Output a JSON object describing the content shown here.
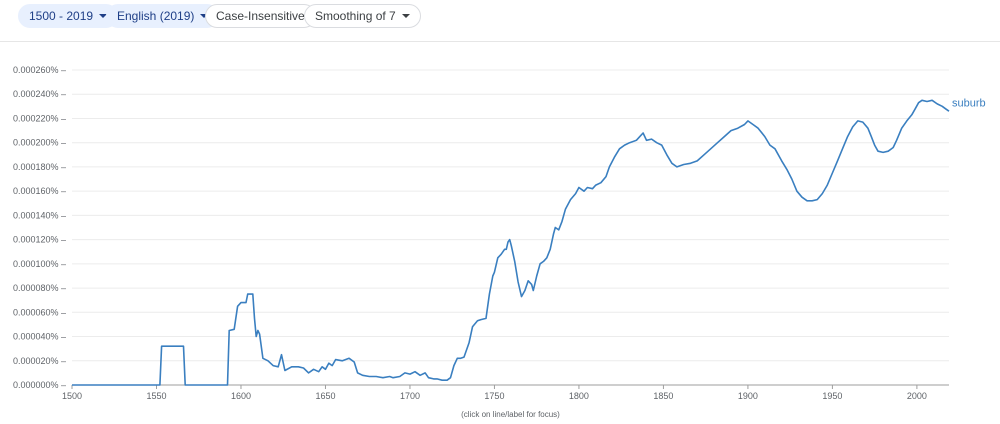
{
  "toolbar": {
    "year_range": "1500 - 2019",
    "corpus": "English (2019)",
    "case": "Case-Insensitive",
    "smoothing": "Smoothing of 7"
  },
  "colors": {
    "series": "#3a7fc0",
    "chip_bg": "#e8f0fe",
    "grid": "#ececec"
  },
  "chart_data": {
    "type": "line",
    "title": "",
    "xlabel": "",
    "ylabel": "",
    "hint": "(click on line/label for focus)",
    "xlim": [
      1500,
      2019
    ],
    "ylim": [
      0,
      0.00026
    ],
    "x_ticks": [
      "1500",
      "1550",
      "1600",
      "1650",
      "1700",
      "1750",
      "1800",
      "1850",
      "1900",
      "1950",
      "2000"
    ],
    "y_ticks": [
      "0.000000%",
      "0.000020%",
      "0.000040%",
      "0.000060%",
      "0.000080%",
      "0.000100%",
      "0.000120%",
      "0.000140%",
      "0.000160%",
      "0.000180%",
      "0.000200%",
      "0.000220%",
      "0.000240%",
      "0.000260%"
    ],
    "series": [
      {
        "name": "suburb",
        "unit": "percent",
        "points": [
          [
            1500,
            0
          ],
          [
            1552,
            0
          ],
          [
            1553,
            3.2e-05
          ],
          [
            1566,
            3.2e-05
          ],
          [
            1567,
            0
          ],
          [
            1592,
            0
          ],
          [
            1593,
            4.5e-05
          ],
          [
            1596,
            4.6e-05
          ],
          [
            1598,
            6.5e-05
          ],
          [
            1600,
            6.8e-05
          ],
          [
            1603,
            6.8e-05
          ],
          [
            1604,
            7.5e-05
          ],
          [
            1607,
            7.5e-05
          ],
          [
            1608,
            5.5e-05
          ],
          [
            1609,
            4e-05
          ],
          [
            1610,
            4.5e-05
          ],
          [
            1611,
            4.2e-05
          ],
          [
            1613,
            2.2e-05
          ],
          [
            1616,
            2e-05
          ],
          [
            1619,
            1.6e-05
          ],
          [
            1622,
            1.5e-05
          ],
          [
            1624,
            2.5e-05
          ],
          [
            1626,
            1.2e-05
          ],
          [
            1630,
            1.5e-05
          ],
          [
            1634,
            1.5e-05
          ],
          [
            1637,
            1.4e-05
          ],
          [
            1640,
            1e-05
          ],
          [
            1643,
            1.3e-05
          ],
          [
            1646,
            1.1e-05
          ],
          [
            1648,
            1.5e-05
          ],
          [
            1650,
            1.3e-05
          ],
          [
            1652,
            1.8e-05
          ],
          [
            1654,
            1.6e-05
          ],
          [
            1656,
            2.1e-05
          ],
          [
            1660,
            2e-05
          ],
          [
            1664,
            2.2e-05
          ],
          [
            1667,
            1.9e-05
          ],
          [
            1669,
            1e-05
          ],
          [
            1672,
            8e-06
          ],
          [
            1676,
            7e-06
          ],
          [
            1680,
            7e-06
          ],
          [
            1684,
            6e-06
          ],
          [
            1688,
            7e-06
          ],
          [
            1690,
            6e-06
          ],
          [
            1694,
            7e-06
          ],
          [
            1697,
            1e-05
          ],
          [
            1700,
            9e-06
          ],
          [
            1703,
            1.1e-05
          ],
          [
            1706,
            8e-06
          ],
          [
            1709,
            1e-05
          ],
          [
            1711,
            6e-06
          ],
          [
            1714,
            5e-06
          ],
          [
            1716,
            5e-06
          ],
          [
            1719,
            4e-06
          ],
          [
            1722,
            4e-06
          ],
          [
            1724,
            6e-06
          ],
          [
            1726,
            1.6e-05
          ],
          [
            1728,
            2.2e-05
          ],
          [
            1730,
            2.2e-05
          ],
          [
            1732,
            2.3e-05
          ],
          [
            1735,
            3.5e-05
          ],
          [
            1737,
            4.8e-05
          ],
          [
            1740,
            5.3e-05
          ],
          [
            1742,
            5.4e-05
          ],
          [
            1745,
            5.5e-05
          ],
          [
            1747,
            7.5e-05
          ],
          [
            1749,
            9e-05
          ],
          [
            1750,
            9.3e-05
          ],
          [
            1752,
            0.000105
          ],
          [
            1754,
            0.000108
          ],
          [
            1756,
            0.000112
          ],
          [
            1757,
            0.000112
          ],
          [
            1758,
            0.000118
          ],
          [
            1759,
            0.00012
          ],
          [
            1760,
            0.000115
          ],
          [
            1762,
            0.000102
          ],
          [
            1764,
            8.5e-05
          ],
          [
            1766,
            7.3e-05
          ],
          [
            1768,
            7.8e-05
          ],
          [
            1770,
            8.6e-05
          ],
          [
            1772,
            8.3e-05
          ],
          [
            1773,
            7.8e-05
          ],
          [
            1775,
            9e-05
          ],
          [
            1777,
            0.0001
          ],
          [
            1779,
            0.000102
          ],
          [
            1781,
            0.000105
          ],
          [
            1783,
            0.000112
          ],
          [
            1785,
            0.000125
          ],
          [
            1786,
            0.00013
          ],
          [
            1788,
            0.000128
          ],
          [
            1790,
            0.000135
          ],
          [
            1792,
            0.000145
          ],
          [
            1795,
            0.000153
          ],
          [
            1798,
            0.000158
          ],
          [
            1800,
            0.000163
          ],
          [
            1803,
            0.00016
          ],
          [
            1805,
            0.000163
          ],
          [
            1808,
            0.000162
          ],
          [
            1810,
            0.000165
          ],
          [
            1813,
            0.000167
          ],
          [
            1816,
            0.000172
          ],
          [
            1818,
            0.00018
          ],
          [
            1821,
            0.000188
          ],
          [
            1824,
            0.000195
          ],
          [
            1827,
            0.000198
          ],
          [
            1830,
            0.0002
          ],
          [
            1834,
            0.000202
          ],
          [
            1836,
            0.000205
          ],
          [
            1838,
            0.000208
          ],
          [
            1840,
            0.000202
          ],
          [
            1843,
            0.000203
          ],
          [
            1846,
            0.0002
          ],
          [
            1849,
            0.000198
          ],
          [
            1852,
            0.00019
          ],
          [
            1855,
            0.000183
          ],
          [
            1858,
            0.00018
          ],
          [
            1862,
            0.000182
          ],
          [
            1866,
            0.000183
          ],
          [
            1870,
            0.000185
          ],
          [
            1874,
            0.00019
          ],
          [
            1878,
            0.000195
          ],
          [
            1882,
            0.0002
          ],
          [
            1886,
            0.000205
          ],
          [
            1890,
            0.00021
          ],
          [
            1894,
            0.000212
          ],
          [
            1898,
            0.000215
          ],
          [
            1900,
            0.000218
          ],
          [
            1903,
            0.000215
          ],
          [
            1906,
            0.000212
          ],
          [
            1910,
            0.000205
          ],
          [
            1913,
            0.000198
          ],
          [
            1916,
            0.000195
          ],
          [
            1920,
            0.000185
          ],
          [
            1923,
            0.000178
          ],
          [
            1926,
            0.00017
          ],
          [
            1929,
            0.00016
          ],
          [
            1932,
            0.000155
          ],
          [
            1935,
            0.000152
          ],
          [
            1938,
            0.000152
          ],
          [
            1941,
            0.000153
          ],
          [
            1944,
            0.000158
          ],
          [
            1947,
            0.000165
          ],
          [
            1950,
            0.000175
          ],
          [
            1953,
            0.000185
          ],
          [
            1956,
            0.000195
          ],
          [
            1959,
            0.000205
          ],
          [
            1962,
            0.000213
          ],
          [
            1965,
            0.000218
          ],
          [
            1968,
            0.000217
          ],
          [
            1971,
            0.000212
          ],
          [
            1973,
            0.000205
          ],
          [
            1975,
            0.000198
          ],
          [
            1977,
            0.000193
          ],
          [
            1980,
            0.000192
          ],
          [
            1983,
            0.000193
          ],
          [
            1986,
            0.000196
          ],
          [
            1988,
            0.000202
          ],
          [
            1991,
            0.000212
          ],
          [
            1994,
            0.000218
          ],
          [
            1997,
            0.000223
          ],
          [
            1999,
            0.000228
          ],
          [
            2001,
            0.000233
          ],
          [
            2003,
            0.000235
          ],
          [
            2006,
            0.000234
          ],
          [
            2009,
            0.000235
          ],
          [
            2012,
            0.000232
          ],
          [
            2015,
            0.00023
          ],
          [
            2017,
            0.000228
          ],
          [
            2019,
            0.000226
          ]
        ]
      }
    ]
  }
}
